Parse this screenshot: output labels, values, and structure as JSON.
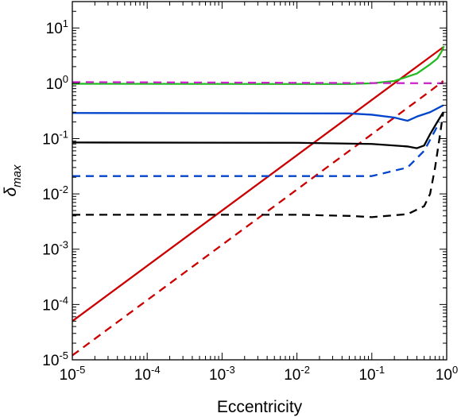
{
  "chart_data": {
    "type": "line",
    "title": "",
    "xlabel": "Eccentricity",
    "ylabel": {
      "base": "δ",
      "sub": "max"
    },
    "xscale": "log",
    "yscale": "log",
    "xlim": [
      1e-05,
      1
    ],
    "ylim": [
      1e-05,
      30
    ],
    "grid": false,
    "legend": "none",
    "x_ticks": [
      {
        "base": "10",
        "exp": "-5",
        "value": 1e-05
      },
      {
        "base": "10",
        "exp": "-4",
        "value": 0.0001
      },
      {
        "base": "10",
        "exp": "-3",
        "value": 0.001
      },
      {
        "base": "10",
        "exp": "-2",
        "value": 0.01
      },
      {
        "base": "10",
        "exp": "-1",
        "value": 0.1
      },
      {
        "base": "10",
        "exp": "0",
        "value": 1
      }
    ],
    "y_ticks": [
      {
        "base": "10",
        "exp": "-5",
        "value": 1e-05
      },
      {
        "base": "10",
        "exp": "-4",
        "value": 0.0001
      },
      {
        "base": "10",
        "exp": "-3",
        "value": 0.001
      },
      {
        "base": "10",
        "exp": "-2",
        "value": 0.01
      },
      {
        "base": "10",
        "exp": "-1",
        "value": 0.1
      },
      {
        "base": "10",
        "exp": "0",
        "value": 1
      },
      {
        "base": "10",
        "exp": "1",
        "value": 10
      }
    ],
    "series": [
      {
        "color": "#cc0000",
        "dash": "solid",
        "points": [
          [
            1e-05,
            5e-05
          ],
          [
            0.01,
            0.05
          ],
          [
            0.1,
            0.5
          ],
          [
            0.3,
            1.5
          ],
          [
            0.6,
            3.0
          ],
          [
            0.9,
            4.5
          ]
        ]
      },
      {
        "color": "#cc0000",
        "dash": "dashed",
        "points": [
          [
            1e-05,
            1.2e-05
          ],
          [
            0.01,
            0.012
          ],
          [
            0.1,
            0.12
          ],
          [
            0.3,
            0.36
          ],
          [
            0.6,
            0.72
          ],
          [
            0.9,
            1.1
          ]
        ]
      },
      {
        "color": "#22bb22",
        "dash": "solid",
        "points": [
          [
            1e-05,
            0.98
          ],
          [
            0.05,
            0.97
          ],
          [
            0.1,
            1.0
          ],
          [
            0.2,
            1.1
          ],
          [
            0.4,
            1.5
          ],
          [
            0.6,
            2.2
          ],
          [
            0.75,
            2.8
          ],
          [
            0.85,
            3.7
          ],
          [
            0.92,
            4.7
          ]
        ]
      },
      {
        "color": "#cc22cc",
        "dash": "dashed",
        "points": [
          [
            1e-05,
            1.05
          ],
          [
            0.9,
            1.0
          ]
        ]
      },
      {
        "color": "#0044cc",
        "dash": "solid",
        "points": [
          [
            1e-05,
            0.29
          ],
          [
            0.05,
            0.285
          ],
          [
            0.1,
            0.27
          ],
          [
            0.2,
            0.24
          ],
          [
            0.3,
            0.21
          ],
          [
            0.4,
            0.25
          ],
          [
            0.6,
            0.3
          ],
          [
            0.9,
            0.4
          ]
        ]
      },
      {
        "color": "#000000",
        "dash": "solid",
        "points": [
          [
            1e-05,
            0.085
          ],
          [
            0.01,
            0.084
          ],
          [
            0.1,
            0.08
          ],
          [
            0.3,
            0.072
          ],
          [
            0.4,
            0.067
          ],
          [
            0.5,
            0.075
          ],
          [
            0.6,
            0.12
          ],
          [
            0.75,
            0.2
          ],
          [
            0.9,
            0.3
          ]
        ]
      },
      {
        "color": "#0044cc",
        "dash": "dashed",
        "points": [
          [
            1e-05,
            0.021
          ],
          [
            0.1,
            0.021
          ],
          [
            0.3,
            0.03
          ],
          [
            0.5,
            0.06
          ],
          [
            0.7,
            0.14
          ],
          [
            0.8,
            0.2
          ]
        ]
      },
      {
        "color": "#000000",
        "dash": "dashed",
        "points": [
          [
            1e-05,
            0.0042
          ],
          [
            0.01,
            0.0042
          ],
          [
            0.05,
            0.004
          ],
          [
            0.1,
            0.0038
          ],
          [
            0.3,
            0.0043
          ],
          [
            0.5,
            0.006
          ],
          [
            0.6,
            0.01
          ],
          [
            0.7,
            0.03
          ],
          [
            0.8,
            0.1
          ],
          [
            0.9,
            0.3
          ]
        ]
      }
    ]
  }
}
